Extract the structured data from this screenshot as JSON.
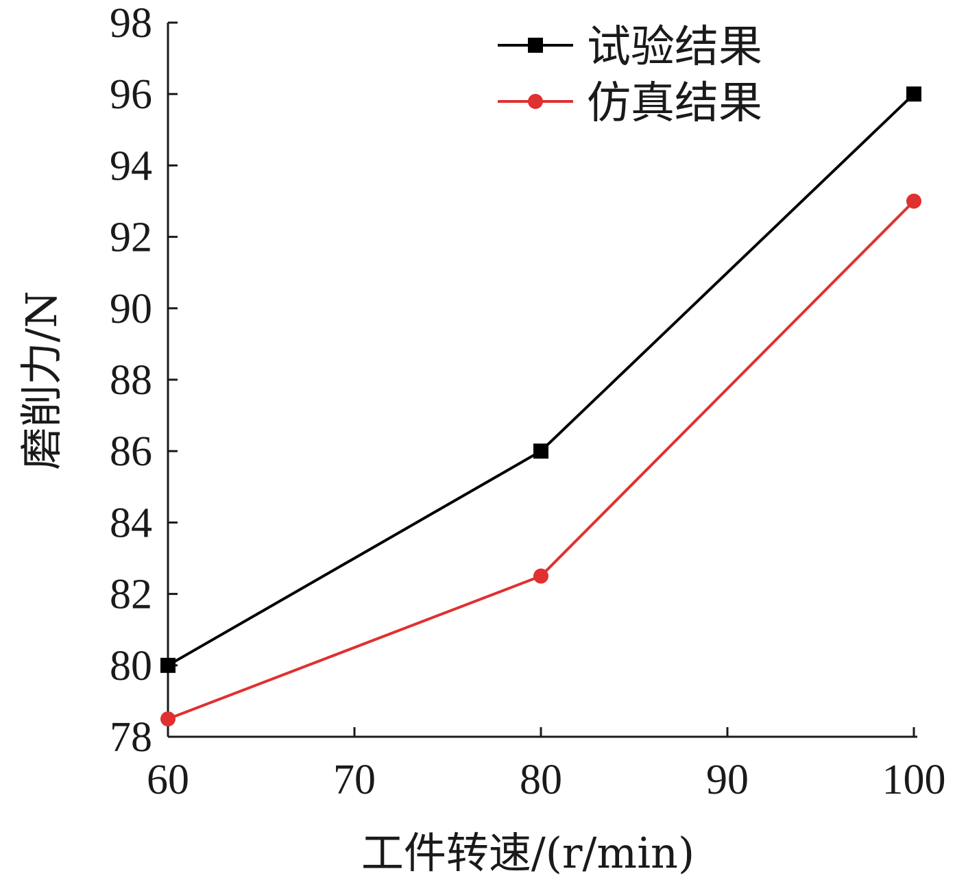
{
  "chart_data": {
    "type": "line",
    "x": [
      60,
      80,
      100
    ],
    "series": [
      {
        "name": "试验结果",
        "values": [
          80,
          86,
          96
        ],
        "color": "#000000",
        "marker": "square"
      },
      {
        "name": "仿真结果",
        "values": [
          78.5,
          82.5,
          93
        ],
        "color": "#e03030",
        "marker": "circle"
      }
    ],
    "xlabel": "工件转速/(r/min)",
    "ylabel": "磨削力/N",
    "xlim": [
      60,
      100
    ],
    "ylim": [
      78,
      98
    ],
    "xticks": [
      "60",
      "70",
      "80",
      "90",
      "100"
    ],
    "yticks": [
      "78",
      "80",
      "82",
      "84",
      "86",
      "88",
      "90",
      "92",
      "94",
      "96",
      "98"
    ],
    "grid": false,
    "legend_position": "top-right"
  }
}
